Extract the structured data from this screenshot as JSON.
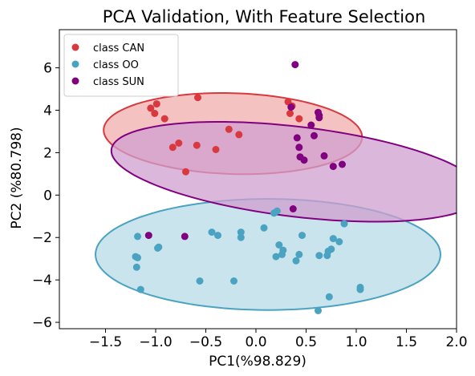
{
  "chart_data": {
    "type": "scatter",
    "title": "PCA Validation, With Feature Selection",
    "xlabel": "PC1(%98.829)",
    "ylabel": "PC2 (%80.798)",
    "xlim": [
      -1.96,
      2.0
    ],
    "ylim": [
      -6.3,
      7.8
    ],
    "xticks": [
      -1.5,
      -1.0,
      -0.5,
      0.0,
      0.5,
      1.0,
      1.5,
      2.0
    ],
    "xtick_labels": [
      "−1.5",
      "−1.0",
      "−0.5",
      "0.0",
      "0.5",
      "1.0",
      "1.5",
      "2.0"
    ],
    "yticks": [
      -6,
      -4,
      -2,
      0,
      2,
      4,
      6
    ],
    "ytick_labels": [
      "−6",
      "−4",
      "−2",
      "0",
      "2",
      "4",
      "6"
    ],
    "grid": false,
    "legend_position": "top-left",
    "series": [
      {
        "name": "class CAN",
        "color": "#d9383f",
        "ellipse": {
          "cx": -0.23,
          "cy": 2.9,
          "rx": 1.28,
          "ry": 1.92,
          "angle_deg": 6,
          "fill": "#f3b7b7",
          "opacity": 0.85
        },
        "points": [
          [
            -1.05,
            4.1
          ],
          [
            -0.99,
            4.3
          ],
          [
            -1.01,
            3.85
          ],
          [
            -0.91,
            3.6
          ],
          [
            -0.58,
            4.6
          ],
          [
            -0.59,
            2.35
          ],
          [
            -0.77,
            2.45
          ],
          [
            -0.83,
            2.25
          ],
          [
            -0.7,
            1.1
          ],
          [
            -0.4,
            2.15
          ],
          [
            -0.27,
            3.1
          ],
          [
            -0.17,
            2.85
          ],
          [
            0.32,
            4.4
          ],
          [
            0.36,
            4.2
          ],
          [
            0.34,
            3.85
          ],
          [
            0.43,
            3.6
          ]
        ]
      },
      {
        "name": "class OO",
        "color": "#4aa3c1",
        "ellipse": {
          "cx": 0.12,
          "cy": -2.8,
          "rx": 1.72,
          "ry": 2.62,
          "angle_deg": 0,
          "fill": "#bcdde8",
          "opacity": 0.8
        },
        "points": [
          [
            -1.18,
            -1.95
          ],
          [
            -1.2,
            -2.9
          ],
          [
            -1.18,
            -2.95
          ],
          [
            -1.19,
            -3.4
          ],
          [
            -1.15,
            -4.45
          ],
          [
            -0.97,
            -2.45
          ],
          [
            -0.98,
            -2.5
          ],
          [
            -0.56,
            -4.05
          ],
          [
            -0.44,
            -1.75
          ],
          [
            -0.38,
            -1.9
          ],
          [
            -0.22,
            -4.05
          ],
          [
            -0.15,
            -1.75
          ],
          [
            -0.15,
            -2.0
          ],
          [
            0.08,
            -1.55
          ],
          [
            0.21,
            -0.75
          ],
          [
            0.18,
            -0.85
          ],
          [
            0.23,
            -2.35
          ],
          [
            0.2,
            -2.9
          ],
          [
            0.26,
            -2.8
          ],
          [
            0.4,
            -3.1
          ],
          [
            0.43,
            -2.8
          ],
          [
            0.46,
            -1.9
          ],
          [
            0.75,
            -2.55
          ],
          [
            0.77,
            -2.05
          ],
          [
            0.71,
            -2.85
          ],
          [
            0.72,
            -2.65
          ],
          [
            0.88,
            -1.35
          ],
          [
            0.83,
            -2.2
          ],
          [
            0.63,
            -2.85
          ],
          [
            1.04,
            -4.35
          ],
          [
            1.04,
            -4.45
          ],
          [
            0.73,
            -4.8
          ],
          [
            0.62,
            -5.45
          ],
          [
            0.27,
            -2.6
          ]
        ]
      },
      {
        "name": "class SUN",
        "color": "#800080",
        "ellipse": {
          "cx": 0.41,
          "cy": 1.1,
          "rx": 1.54,
          "ry": 2.57,
          "angle_deg": 30,
          "fill": "#cf9fcf",
          "opacity": 0.75
        },
        "points": [
          [
            0.39,
            6.15
          ],
          [
            0.35,
            4.15
          ],
          [
            0.62,
            3.9
          ],
          [
            0.63,
            3.75
          ],
          [
            0.63,
            3.65
          ],
          [
            0.41,
            2.7
          ],
          [
            0.55,
            3.3
          ],
          [
            0.58,
            2.8
          ],
          [
            0.43,
            2.25
          ],
          [
            0.44,
            1.8
          ],
          [
            0.48,
            1.65
          ],
          [
            0.68,
            1.85
          ],
          [
            0.77,
            1.35
          ],
          [
            0.86,
            1.45
          ],
          [
            -1.07,
            -1.9
          ],
          [
            -0.71,
            -1.95
          ],
          [
            0.37,
            -0.65
          ]
        ]
      }
    ]
  }
}
